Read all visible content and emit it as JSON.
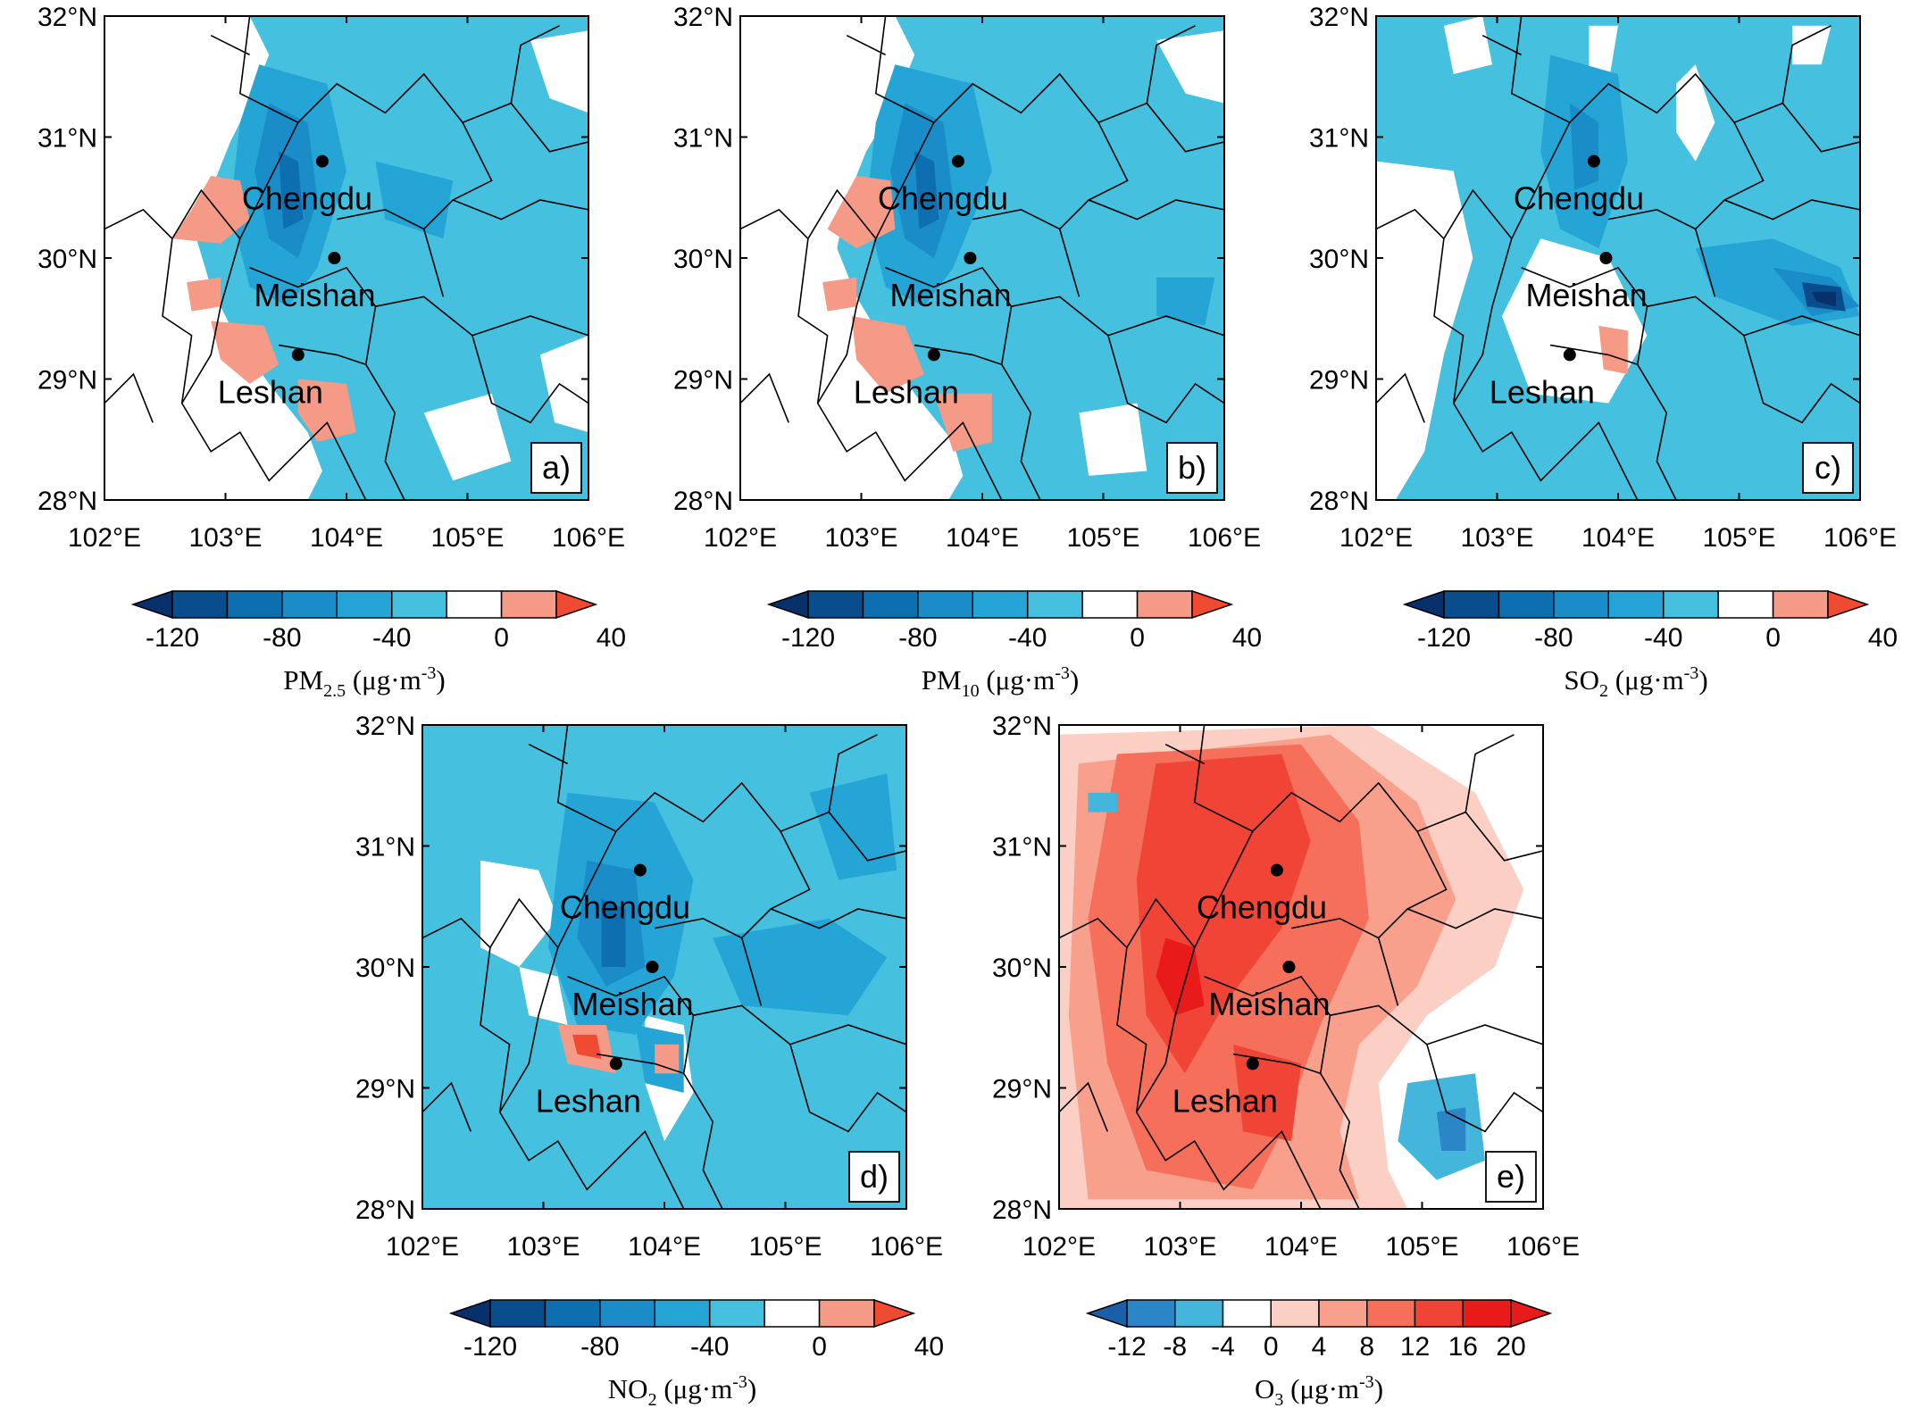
{
  "figure": {
    "lat_ticks": [
      "28°N",
      "29°N",
      "30°N",
      "31°N",
      "32°N"
    ],
    "lon_ticks": [
      "102°E",
      "103°E",
      "104°E",
      "105°E",
      "106°E"
    ],
    "extent": {
      "lon": [
        102,
        106
      ],
      "lat": [
        28,
        32
      ]
    },
    "cities": [
      {
        "name": "Chengdu",
        "lon": 103.8,
        "lat": 30.8
      },
      {
        "name": "Meishan",
        "lon": 103.9,
        "lat": 30.0
      },
      {
        "name": "Leshan",
        "lon": 103.6,
        "lat": 29.2
      }
    ],
    "concentration_colors": [
      "#08306b",
      "#0a4d8c",
      "#0d6eb0",
      "#1a8cc8",
      "#25a5d6",
      "#45c1df",
      "#ffffff",
      "#f59a86",
      "#f04a32"
    ],
    "o3_colors": [
      "#1a5fa8",
      "#2a86c6",
      "#44b6dc",
      "#ffffff",
      "#fbcfc4",
      "#f8a08c",
      "#f56f5a",
      "#f04536",
      "#e81a1a"
    ],
    "panels": [
      {
        "id": "a",
        "label": "a)",
        "title_main": "PM",
        "title_sub": "2.5",
        "title_unit_pre": " (μg·m",
        "title_sup": "-3",
        "title_unit_post": ")",
        "cbar_labels": [
          "-120",
          "-80",
          "-40",
          "0",
          "40"
        ],
        "palette": "concentration"
      },
      {
        "id": "b",
        "label": "b)",
        "title_main": "PM",
        "title_sub": "10",
        "title_unit_pre": " (μg·m",
        "title_sup": "-3",
        "title_unit_post": ")",
        "cbar_labels": [
          "-120",
          "-80",
          "-40",
          "0",
          "40"
        ],
        "palette": "concentration"
      },
      {
        "id": "c",
        "label": "c)",
        "title_main": "SO",
        "title_sub": "2",
        "title_unit_pre": " (μg·m",
        "title_sup": "-3",
        "title_unit_post": ")",
        "cbar_labels": [
          "-120",
          "-80",
          "-40",
          "0",
          "40"
        ],
        "palette": "concentration"
      },
      {
        "id": "d",
        "label": "d)",
        "title_main": "NO",
        "title_sub": "2",
        "title_unit_pre": " (μg·m",
        "title_sup": "-3",
        "title_unit_post": ")",
        "cbar_labels": [
          "-120",
          "-80",
          "-40",
          "0",
          "40"
        ],
        "palette": "concentration"
      },
      {
        "id": "e",
        "label": "e)",
        "title_main": "O",
        "title_sub": "3",
        "title_unit_pre": " (μg·m",
        "title_sup": "-3",
        "title_unit_post": ")",
        "cbar_labels": [
          "-12",
          "-8",
          "-4",
          "0",
          "4",
          "8",
          "12",
          "16",
          "20"
        ],
        "palette": "o3"
      }
    ]
  }
}
